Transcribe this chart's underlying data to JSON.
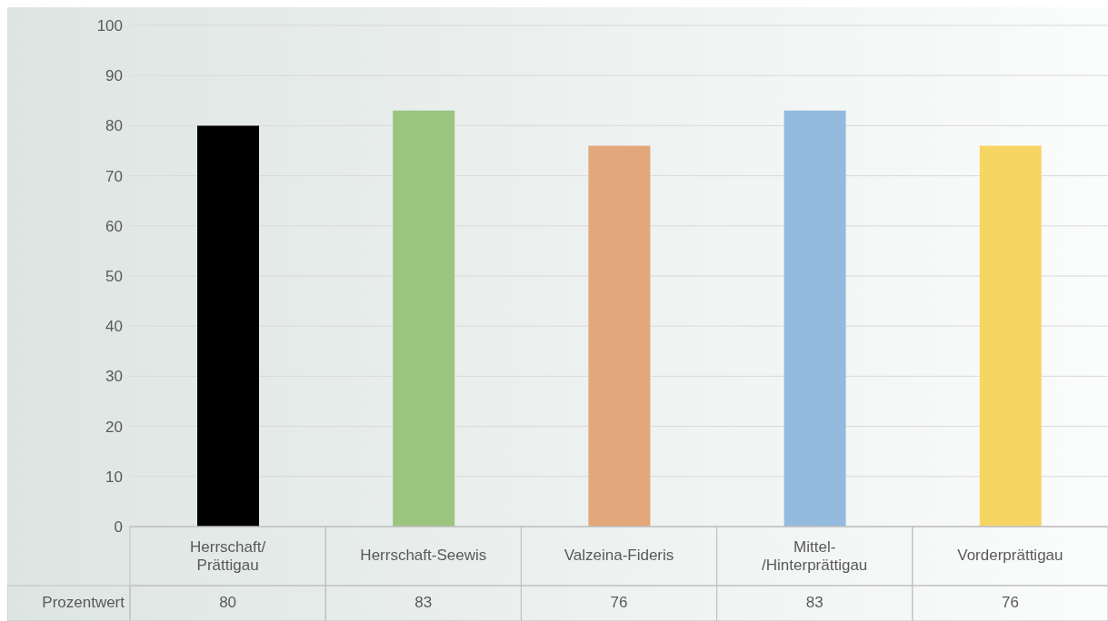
{
  "chart_data": {
    "type": "bar",
    "categories": [
      "Herrschaft/ Prättigau",
      "Herrschaft-Seewis",
      "Valzeina-Fideris",
      "Mittel- /Hinterprättigau",
      "Vorderprättigau"
    ],
    "series": [
      {
        "name": "Prozentwert",
        "values": [
          80,
          83,
          76,
          83,
          76
        ]
      }
    ],
    "colors": [
      "#000000",
      "#9bc47f",
      "#e3a77b",
      "#94bbdf",
      "#f7d563"
    ],
    "ylim": [
      0,
      100
    ],
    "yticks": [
      0,
      10,
      20,
      30,
      40,
      50,
      60,
      70,
      80,
      90,
      100
    ],
    "grid": "y",
    "data_labels": true
  }
}
